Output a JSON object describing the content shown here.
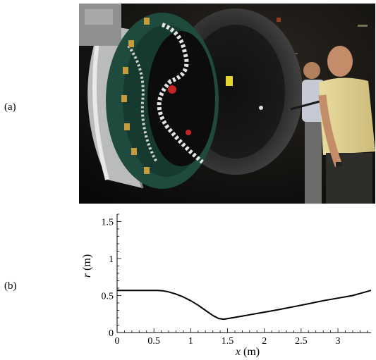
{
  "panels": {
    "a_label": "(a)",
    "b_label": "(b)"
  },
  "photo": {
    "subject": "nozzle-hardware-inspection-photo"
  },
  "chart_data": {
    "type": "line",
    "title": "",
    "xlabel_var": "x",
    "xlabel_unit": " (m)",
    "ylabel_var": "r",
    "ylabel_unit": " (m)",
    "xlim": [
      0,
      3.45
    ],
    "ylim": [
      0,
      1.6
    ],
    "xticks": [
      0,
      0.5,
      1,
      1.5,
      2,
      2.5,
      3
    ],
    "xtick_labels": [
      "0",
      "0.5",
      "1",
      "1.5",
      "2",
      "2.5",
      "3"
    ],
    "yticks": [
      0,
      0.5,
      1,
      1.5
    ],
    "ytick_labels": [
      "0",
      "0.5",
      "1",
      "1.5"
    ],
    "grid": false,
    "series": [
      {
        "color": "#000000",
        "x": [
          0,
          0.2,
          0.4,
          0.55,
          0.62,
          0.7,
          0.8,
          0.9,
          1.0,
          1.1,
          1.2,
          1.3,
          1.38,
          1.45,
          1.6,
          1.8,
          2.0,
          2.2,
          2.4,
          2.6,
          2.8,
          3.0,
          3.2,
          3.45
        ],
        "y": [
          0.57,
          0.57,
          0.57,
          0.57,
          0.565,
          0.55,
          0.52,
          0.48,
          0.43,
          0.37,
          0.3,
          0.23,
          0.19,
          0.18,
          0.205,
          0.24,
          0.275,
          0.31,
          0.35,
          0.39,
          0.43,
          0.465,
          0.5,
          0.57
        ]
      }
    ]
  }
}
